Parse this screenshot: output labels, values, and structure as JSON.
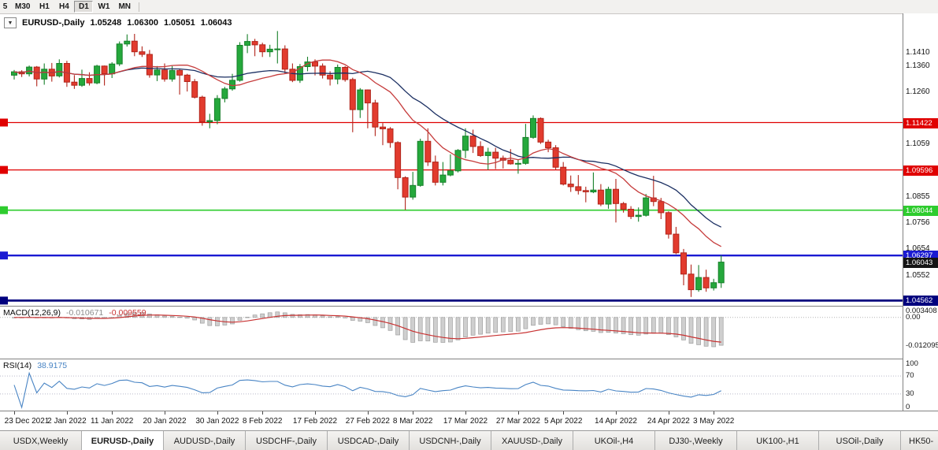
{
  "toolbar": {
    "buttons": [
      {
        "label": "5",
        "active": false
      },
      {
        "label": "M30",
        "active": false
      },
      {
        "label": "H1",
        "active": false
      },
      {
        "label": "H4",
        "active": false
      },
      {
        "label": "D1",
        "active": true
      },
      {
        "label": "W1",
        "active": false
      },
      {
        "label": "MN",
        "active": false
      }
    ]
  },
  "chart": {
    "dropdown_icon": "▼",
    "title": "EURUSD-,Daily",
    "open": "1.05248",
    "high": "1.06300",
    "low": "1.05051",
    "close": "1.06043",
    "current_price": {
      "label": "1.06043",
      "value": 1.06043,
      "color": "#141414"
    }
  },
  "chart_data": {
    "type": "candlestick",
    "symbol": "EURUSD-",
    "timeframe": "Daily",
    "title": "EURUSD-,Daily 1.05248 1.06300 1.05051 1.06043",
    "ylim": [
      1.0436,
      1.1563
    ],
    "y_axis_labels": [
      1.141,
      1.136,
      1.126,
      1.1059,
      1.0855,
      1.0756,
      1.0654,
      1.0552
    ],
    "colors": {
      "up_fill": "#25a83c",
      "up_stroke": "#17802a",
      "down_fill": "#e23b2e",
      "down_stroke": "#b1241a"
    },
    "overlays": [
      {
        "name": "ma-slow",
        "type": "sma",
        "period": 21,
        "color": "#1b2f62"
      },
      {
        "name": "ma-fast",
        "type": "sma",
        "period": 13,
        "color": "#c63c3c"
      }
    ],
    "levels": [
      {
        "value": 1.11422,
        "label": "1.11422",
        "color": "#e00000",
        "width": 1.3
      },
      {
        "value": 1.09596,
        "label": "1.09596",
        "color": "#e00000",
        "width": 1.3
      },
      {
        "value": 1.08044,
        "label": "1.08044",
        "color": "#2ecc2e",
        "width": 1.6
      },
      {
        "value": 1.06297,
        "label": "1.06297",
        "color": "#1a1ad2",
        "width": 2.4
      },
      {
        "value": 1.04562,
        "label": "1.04562",
        "color": "#00007e",
        "width": 2.8
      }
    ],
    "x_ticks": [
      {
        "i": 0,
        "label": "23 Dec 2021"
      },
      {
        "i": 7,
        "label": "2 Jan 2022"
      },
      {
        "i": 13,
        "label": "11 Jan 2022"
      },
      {
        "i": 20,
        "label": "20 Jan 2022"
      },
      {
        "i": 27,
        "label": "30 Jan 2022"
      },
      {
        "i": 33,
        "label": "8 Feb 2022"
      },
      {
        "i": 40,
        "label": "17 Feb 2022"
      },
      {
        "i": 47,
        "label": "27 Feb 2022"
      },
      {
        "i": 53,
        "label": "8 Mar 2022"
      },
      {
        "i": 60,
        "label": "17 Mar 2022"
      },
      {
        "i": 67,
        "label": "27 Mar 2022"
      },
      {
        "i": 73,
        "label": "5 Apr 2022"
      },
      {
        "i": 80,
        "label": "14 Apr 2022"
      },
      {
        "i": 87,
        "label": "24 Apr 2022"
      },
      {
        "i": 93,
        "label": "3 May 2022"
      }
    ],
    "candles": [
      [
        "2021-12-23",
        1.1325,
        1.1345,
        1.1308,
        1.1338
      ],
      [
        "2021-12-24",
        1.1338,
        1.1344,
        1.1318,
        1.133
      ],
      [
        "2021-12-27",
        1.133,
        1.1362,
        1.132,
        1.1356
      ],
      [
        "2021-12-28",
        1.1356,
        1.136,
        1.1282,
        1.131
      ],
      [
        "2021-12-29",
        1.131,
        1.137,
        1.1288,
        1.1348
      ],
      [
        "2021-12-30",
        1.1348,
        1.1372,
        1.13,
        1.1322
      ],
      [
        "2021-12-31",
        1.1322,
        1.1386,
        1.1316,
        1.137
      ],
      [
        "2022-01-03",
        1.137,
        1.138,
        1.128,
        1.1298
      ],
      [
        "2022-01-04",
        1.1298,
        1.1325,
        1.1272,
        1.1286
      ],
      [
        "2022-01-05",
        1.1286,
        1.1346,
        1.128,
        1.1312
      ],
      [
        "2022-01-06",
        1.1312,
        1.1336,
        1.1285,
        1.1295
      ],
      [
        "2022-01-07",
        1.1295,
        1.1365,
        1.129,
        1.136
      ],
      [
        "2022-01-10",
        1.136,
        1.1362,
        1.1285,
        1.133
      ],
      [
        "2022-01-11",
        1.133,
        1.1375,
        1.1314,
        1.1368
      ],
      [
        "2022-01-12",
        1.1368,
        1.1455,
        1.136,
        1.1445
      ],
      [
        "2022-01-13",
        1.1445,
        1.1482,
        1.1435,
        1.1456
      ],
      [
        "2022-01-14",
        1.1456,
        1.1484,
        1.1398,
        1.1415
      ],
      [
        "2022-01-17",
        1.1415,
        1.1436,
        1.1395,
        1.1405
      ],
      [
        "2022-01-18",
        1.1405,
        1.1422,
        1.1315,
        1.1326
      ],
      [
        "2022-01-19",
        1.1326,
        1.136,
        1.1302,
        1.1345
      ],
      [
        "2022-01-20",
        1.1345,
        1.137,
        1.13,
        1.131
      ],
      [
        "2022-01-21",
        1.131,
        1.136,
        1.13,
        1.1343
      ],
      [
        "2022-01-24",
        1.1343,
        1.135,
        1.125,
        1.1325
      ],
      [
        "2022-01-25",
        1.1325,
        1.133,
        1.1262,
        1.13
      ],
      [
        "2022-01-26",
        1.13,
        1.131,
        1.1235,
        1.124
      ],
      [
        "2022-01-27",
        1.124,
        1.1246,
        1.113,
        1.1145
      ],
      [
        "2022-01-28",
        1.1145,
        1.1176,
        1.112,
        1.115
      ],
      [
        "2022-01-31",
        1.115,
        1.1248,
        1.1136,
        1.1235
      ],
      [
        "2022-02-01",
        1.1235,
        1.128,
        1.122,
        1.1272
      ],
      [
        "2022-02-02",
        1.1272,
        1.133,
        1.1265,
        1.1305
      ],
      [
        "2022-02-03",
        1.1305,
        1.1452,
        1.13,
        1.144
      ],
      [
        "2022-02-04",
        1.144,
        1.1483,
        1.141,
        1.1455
      ],
      [
        "2022-02-07",
        1.1455,
        1.1465,
        1.1398,
        1.1442
      ],
      [
        "2022-02-08",
        1.1442,
        1.145,
        1.1395,
        1.1415
      ],
      [
        "2022-02-09",
        1.1415,
        1.1442,
        1.1395,
        1.1425
      ],
      [
        "2022-02-10",
        1.1425,
        1.1495,
        1.137,
        1.1426
      ],
      [
        "2022-02-11",
        1.1426,
        1.144,
        1.133,
        1.1348
      ],
      [
        "2022-02-14",
        1.1348,
        1.137,
        1.1298,
        1.1305
      ],
      [
        "2022-02-15",
        1.1305,
        1.1368,
        1.1295,
        1.1358
      ],
      [
        "2022-02-16",
        1.1358,
        1.1396,
        1.134,
        1.1376
      ],
      [
        "2022-02-17",
        1.1376,
        1.1386,
        1.1324,
        1.136
      ],
      [
        "2022-02-18",
        1.136,
        1.137,
        1.1312,
        1.1325
      ],
      [
        "2022-02-21",
        1.1325,
        1.134,
        1.1285,
        1.131
      ],
      [
        "2022-02-22",
        1.131,
        1.1366,
        1.129,
        1.1355
      ],
      [
        "2022-02-23",
        1.1355,
        1.136,
        1.13,
        1.1308
      ],
      [
        "2022-02-24",
        1.1308,
        1.1315,
        1.1105,
        1.1192
      ],
      [
        "2022-02-25",
        1.1192,
        1.1275,
        1.116,
        1.1268
      ],
      [
        "2022-02-28",
        1.1268,
        1.127,
        1.112,
        1.1218
      ],
      [
        "2022-03-01",
        1.1218,
        1.123,
        1.109,
        1.1125
      ],
      [
        "2022-03-02",
        1.1125,
        1.114,
        1.1055,
        1.1118
      ],
      [
        "2022-03-03",
        1.1118,
        1.1125,
        1.1045,
        1.1065
      ],
      [
        "2022-03-04",
        1.1065,
        1.107,
        1.0885,
        1.093
      ],
      [
        "2022-03-07",
        1.093,
        1.0935,
        1.0805,
        1.0855
      ],
      [
        "2022-03-08",
        1.0855,
        1.0952,
        1.0845,
        1.09
      ],
      [
        "2022-03-09",
        1.09,
        1.108,
        1.0895,
        1.107
      ],
      [
        "2022-03-10",
        1.107,
        1.112,
        1.0975,
        1.099
      ],
      [
        "2022-03-11",
        1.099,
        1.1015,
        1.09,
        1.0912
      ],
      [
        "2022-03-14",
        1.0912,
        1.099,
        1.09,
        1.094
      ],
      [
        "2022-03-15",
        1.094,
        1.102,
        1.0935,
        1.0956
      ],
      [
        "2022-03-16",
        1.0956,
        1.104,
        1.095,
        1.1035
      ],
      [
        "2022-03-17",
        1.1035,
        1.112,
        1.1005,
        1.109
      ],
      [
        "2022-03-18",
        1.109,
        1.1115,
        1.1025,
        1.105
      ],
      [
        "2022-03-21",
        1.105,
        1.107,
        1.101,
        1.1015
      ],
      [
        "2022-03-22",
        1.1015,
        1.1045,
        1.096,
        1.1028
      ],
      [
        "2022-03-23",
        1.1028,
        1.1045,
        1.0963,
        1.1005
      ],
      [
        "2022-03-24",
        1.1005,
        1.1015,
        1.0965,
        1.0997
      ],
      [
        "2022-03-25",
        1.0997,
        1.104,
        1.098,
        1.0983
      ],
      [
        "2022-03-28",
        1.0983,
        1.0998,
        1.0945,
        1.0985
      ],
      [
        "2022-03-29",
        1.0985,
        1.1137,
        1.098,
        1.1085
      ],
      [
        "2022-03-30",
        1.1085,
        1.117,
        1.108,
        1.1158
      ],
      [
        "2022-03-31",
        1.1158,
        1.1162,
        1.106,
        1.1067
      ],
      [
        "2022-04-01",
        1.1067,
        1.1076,
        1.1028,
        1.1045
      ],
      [
        "2022-04-04",
        1.1045,
        1.1055,
        1.096,
        1.097
      ],
      [
        "2022-04-05",
        1.097,
        1.099,
        1.09,
        1.0905
      ],
      [
        "2022-04-06",
        1.0905,
        1.0938,
        1.0875,
        1.0895
      ],
      [
        "2022-04-07",
        1.0895,
        1.094,
        1.0865,
        1.088
      ],
      [
        "2022-04-08",
        1.088,
        1.0895,
        1.0835,
        1.0875
      ],
      [
        "2022-04-11",
        1.0875,
        1.095,
        1.087,
        1.0882
      ],
      [
        "2022-04-12",
        1.0882,
        1.0905,
        1.082,
        1.0828
      ],
      [
        "2022-04-13",
        1.0828,
        1.0895,
        1.081,
        1.0885
      ],
      [
        "2022-04-14",
        1.0885,
        1.0925,
        1.0757,
        1.083
      ],
      [
        "2022-04-15",
        1.083,
        1.0836,
        1.0795,
        1.0808
      ],
      [
        "2022-04-18",
        1.0808,
        1.082,
        1.077,
        1.078
      ],
      [
        "2022-04-19",
        1.078,
        1.0815,
        1.076,
        1.0785
      ],
      [
        "2022-04-20",
        1.0785,
        1.0867,
        1.078,
        1.0852
      ],
      [
        "2022-04-21",
        1.0852,
        1.0937,
        1.082,
        1.0838
      ],
      [
        "2022-04-22",
        1.0838,
        1.0852,
        1.077,
        1.0795
      ],
      [
        "2022-04-25",
        1.0795,
        1.08,
        1.0695,
        1.0712
      ],
      [
        "2022-04-26",
        1.0712,
        1.074,
        1.0635,
        1.064
      ],
      [
        "2022-04-27",
        1.064,
        1.0655,
        1.0515,
        1.0558
      ],
      [
        "2022-04-28",
        1.0558,
        1.0595,
        1.047,
        1.0498
      ],
      [
        "2022-04-29",
        1.0498,
        1.0593,
        1.049,
        1.0545
      ],
      [
        "2022-05-02",
        1.0545,
        1.0575,
        1.049,
        1.0505
      ],
      [
        "2022-05-03",
        1.0505,
        1.054,
        1.0495,
        1.0525
      ],
      [
        "2022-05-04",
        1.05248,
        1.063,
        1.05051,
        1.06043
      ]
    ],
    "indicators": [
      {
        "name": "MACD",
        "label": "MACD(12,26,9)",
        "main_value": "-0.010671",
        "signal_value": "-0.009559",
        "params": {
          "fast": 12,
          "slow": 26,
          "signal": 9
        },
        "ylim": [
          -0.0174,
          0.0046
        ],
        "axis": [
          {
            "v": 0.003408,
            "t": "0.003408"
          },
          {
            "v": 0.0,
            "t": "0.00"
          },
          {
            "v": -0.012095,
            "t": "-0.012095"
          }
        ],
        "histogram_color": "#cfcfcf",
        "signal_color": "#c83232"
      },
      {
        "name": "RSI",
        "label": "RSI(14)",
        "value": "38.9175",
        "period": 14,
        "ylim": [
          0,
          100
        ],
        "axis": [
          {
            "v": 100,
            "t": "100"
          },
          {
            "v": 70,
            "t": "70"
          },
          {
            "v": 30,
            "t": "30"
          },
          {
            "v": 0,
            "t": "0"
          }
        ],
        "levels": [
          70,
          30
        ],
        "line_color": "#4884c4"
      }
    ]
  },
  "tabs": {
    "items": [
      {
        "label": "USDX,Weekly",
        "active": false
      },
      {
        "label": "EURUSD-,Daily",
        "active": true
      },
      {
        "label": "AUDUSD-,Daily",
        "active": false
      },
      {
        "label": "USDCHF-,Daily",
        "active": false
      },
      {
        "label": "USDCAD-,Daily",
        "active": false
      },
      {
        "label": "USDCNH-,Daily",
        "active": false
      },
      {
        "label": "XAUUSD-,Daily",
        "active": false
      },
      {
        "label": "UKOil-,H4",
        "active": false
      },
      {
        "label": "DJ30-,Weekly",
        "active": false
      },
      {
        "label": "UK100-,H1",
        "active": false
      },
      {
        "label": "USOil-,Daily",
        "active": false
      },
      {
        "label": "HK50-",
        "active": false
      }
    ]
  }
}
